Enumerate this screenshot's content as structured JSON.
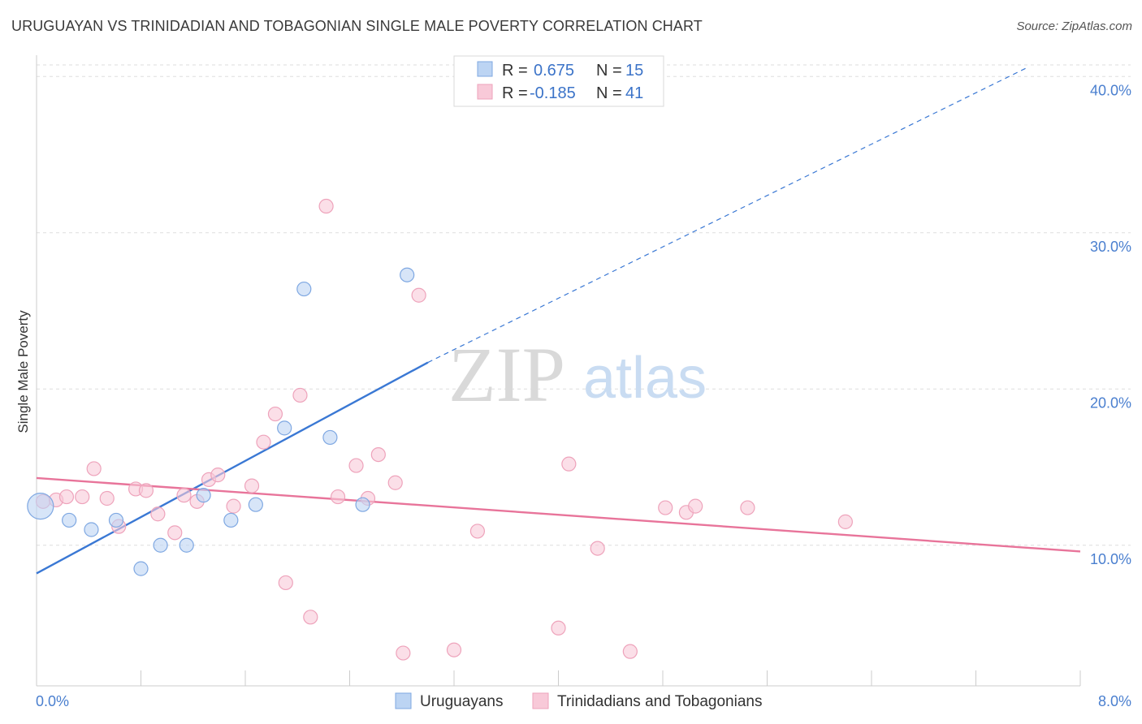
{
  "header": {
    "title": "URUGUAYAN VS TRINIDADIAN AND TOBAGONIAN SINGLE MALE POVERTY CORRELATION CHART",
    "source": "Source: ZipAtlas.com"
  },
  "watermark": {
    "part1": "ZIP",
    "part2": "atlas"
  },
  "colors": {
    "blue": "#3a78d4",
    "blue_fill": "#bcd4f3",
    "blue_stroke": "#7fa8e2",
    "pink": "#e8749a",
    "pink_fill": "#f8c9d8",
    "pink_stroke": "#eea3bb",
    "axis_text": "#4a7fcf",
    "grid": "#dddddd"
  },
  "legend": {
    "rows": [
      {
        "r_label": "R =",
        "r_value": "0.675",
        "n_label": "N =",
        "n_value": "15",
        "color": "blue"
      },
      {
        "r_label": "R =",
        "r_value": "-0.185",
        "n_label": "N =",
        "n_value": "41",
        "color": "pink"
      }
    ]
  },
  "bottom_legend": [
    "Uruguayans",
    "Trinidadians and Tobagonians"
  ],
  "chart_data": {
    "type": "scatter",
    "title": "URUGUAYAN VS TRINIDADIAN AND TOBAGONIAN SINGLE MALE POVERTY CORRELATION CHART",
    "xlabel": "",
    "ylabel": "Single Male Poverty",
    "xlim": [
      0,
      8
    ],
    "ylim": [
      1,
      41
    ],
    "x_tick_labels": [
      "0.0%",
      "8.0%"
    ],
    "y_ticks": [
      10,
      20,
      30,
      40
    ],
    "y_tick_labels": [
      "10.0%",
      "20.0%",
      "30.0%",
      "40.0%"
    ],
    "grid": true,
    "legend_position": "top-center",
    "series": [
      {
        "name": "Uruguayans",
        "color": "blue",
        "r": 0.675,
        "n": 15,
        "points": [
          [
            0.03,
            12.5,
            "large"
          ],
          [
            0.25,
            11.6
          ],
          [
            0.42,
            11.0
          ],
          [
            0.61,
            11.6
          ],
          [
            0.8,
            8.5
          ],
          [
            0.95,
            10.0
          ],
          [
            1.15,
            10.0
          ],
          [
            1.28,
            13.2
          ],
          [
            1.49,
            11.6
          ],
          [
            1.68,
            12.6
          ],
          [
            1.9,
            17.5
          ],
          [
            2.05,
            26.4
          ],
          [
            2.25,
            16.9
          ],
          [
            2.5,
            12.6
          ],
          [
            2.84,
            27.3
          ]
        ],
        "trend": {
          "x0": 0.0,
          "y0": 8.2,
          "x1": 3.0,
          "y1": 21.7,
          "dash_x1": 7.6,
          "dash_y1": 40.6
        }
      },
      {
        "name": "Trinidadians and Tobagonians",
        "color": "pink",
        "r": -0.185,
        "n": 41,
        "points": [
          [
            0.05,
            12.8
          ],
          [
            0.15,
            12.9
          ],
          [
            0.23,
            13.1
          ],
          [
            0.35,
            13.1
          ],
          [
            0.44,
            14.9
          ],
          [
            0.54,
            13.0
          ],
          [
            0.63,
            11.2
          ],
          [
            0.76,
            13.6
          ],
          [
            0.84,
            13.5
          ],
          [
            0.93,
            12.0
          ],
          [
            1.06,
            10.8
          ],
          [
            1.13,
            13.2
          ],
          [
            1.23,
            12.8
          ],
          [
            1.32,
            14.2
          ],
          [
            1.39,
            14.5
          ],
          [
            1.51,
            12.5
          ],
          [
            1.65,
            13.8
          ],
          [
            1.74,
            16.6
          ],
          [
            1.83,
            18.4
          ],
          [
            1.91,
            7.6
          ],
          [
            2.02,
            19.6
          ],
          [
            2.1,
            5.4
          ],
          [
            2.22,
            31.7
          ],
          [
            2.31,
            13.1
          ],
          [
            2.45,
            15.1
          ],
          [
            2.54,
            13.0
          ],
          [
            2.62,
            15.8
          ],
          [
            2.75,
            14.0
          ],
          [
            2.81,
            3.1
          ],
          [
            2.93,
            26.0
          ],
          [
            3.2,
            3.3
          ],
          [
            3.38,
            10.9
          ],
          [
            4.0,
            4.7
          ],
          [
            4.08,
            15.2
          ],
          [
            4.3,
            9.8
          ],
          [
            4.55,
            3.2
          ],
          [
            4.82,
            12.4
          ],
          [
            4.98,
            12.1
          ],
          [
            5.05,
            12.5
          ],
          [
            5.45,
            12.4
          ],
          [
            6.2,
            11.5
          ]
        ],
        "trend": {
          "x0": 0.0,
          "y0": 14.3,
          "x1": 8.0,
          "y1": 9.6
        }
      }
    ]
  }
}
